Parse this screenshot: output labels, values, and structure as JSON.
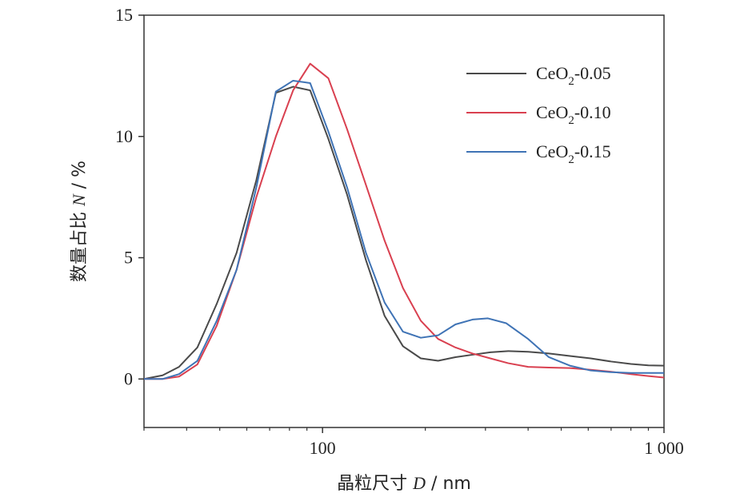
{
  "chart_data": {
    "type": "line",
    "x_scale": "log",
    "xlim": [
      30,
      1000
    ],
    "ylim": [
      -2,
      15
    ],
    "xlabel": {
      "prefix": "晶粒尺寸 ",
      "symbol": "D",
      "suffix": " / nm"
    },
    "ylabel": {
      "prefix": "数量占比 ",
      "symbol": "N",
      "suffix": " / %"
    },
    "x_ticks": [
      {
        "value": 100,
        "label": "100"
      },
      {
        "value": 1000,
        "label": "1 000"
      }
    ],
    "y_ticks": [
      {
        "value": 0,
        "label": "0"
      },
      {
        "value": 5,
        "label": "5"
      },
      {
        "value": 10,
        "label": "10"
      },
      {
        "value": 15,
        "label": "15"
      }
    ],
    "legend_position": "top-right",
    "series": [
      {
        "name": "CeO2-0.05",
        "name_parts": {
          "base": "CeO",
          "sub": "2",
          "tail": "-0.05"
        },
        "color": "#4a4a4a",
        "points": [
          [
            30,
            0
          ],
          [
            34,
            0.15
          ],
          [
            38,
            0.5
          ],
          [
            43,
            1.3
          ],
          [
            49,
            3.1
          ],
          [
            56,
            5.2
          ],
          [
            64,
            8.2
          ],
          [
            73,
            11.8
          ],
          [
            82,
            12.05
          ],
          [
            92,
            11.9
          ],
          [
            104,
            9.9
          ],
          [
            118,
            7.6
          ],
          [
            134,
            4.9
          ],
          [
            152,
            2.6
          ],
          [
            172,
            1.35
          ],
          [
            194,
            0.85
          ],
          [
            218,
            0.75
          ],
          [
            245,
            0.9
          ],
          [
            275,
            1.0
          ],
          [
            310,
            1.1
          ],
          [
            350,
            1.15
          ],
          [
            400,
            1.12
          ],
          [
            460,
            1.05
          ],
          [
            530,
            0.95
          ],
          [
            610,
            0.85
          ],
          [
            700,
            0.72
          ],
          [
            800,
            0.62
          ],
          [
            900,
            0.56
          ],
          [
            1000,
            0.55
          ]
        ]
      },
      {
        "name": "CeO2-0.10",
        "name_parts": {
          "base": "CeO",
          "sub": "2",
          "tail": "-0.10"
        },
        "color": "#d94050",
        "points": [
          [
            30,
            0
          ],
          [
            34,
            0
          ],
          [
            38,
            0.1
          ],
          [
            43,
            0.6
          ],
          [
            49,
            2.2
          ],
          [
            56,
            4.5
          ],
          [
            64,
            7.5
          ],
          [
            73,
            10.0
          ],
          [
            82,
            11.9
          ],
          [
            92,
            13.0
          ],
          [
            104,
            12.4
          ],
          [
            118,
            10.3
          ],
          [
            134,
            8.0
          ],
          [
            152,
            5.7
          ],
          [
            172,
            3.75
          ],
          [
            194,
            2.4
          ],
          [
            218,
            1.65
          ],
          [
            245,
            1.3
          ],
          [
            275,
            1.05
          ],
          [
            310,
            0.85
          ],
          [
            350,
            0.65
          ],
          [
            400,
            0.5
          ],
          [
            460,
            0.47
          ],
          [
            530,
            0.45
          ],
          [
            610,
            0.38
          ],
          [
            700,
            0.3
          ],
          [
            800,
            0.2
          ],
          [
            900,
            0.12
          ],
          [
            1000,
            0.06
          ]
        ]
      },
      {
        "name": "CeO2-0.15",
        "name_parts": {
          "base": "CeO",
          "sub": "2",
          "tail": "-0.15"
        },
        "color": "#3f73b5",
        "points": [
          [
            30,
            0
          ],
          [
            34,
            0
          ],
          [
            38,
            0.2
          ],
          [
            43,
            0.75
          ],
          [
            49,
            2.4
          ],
          [
            56,
            4.5
          ],
          [
            64,
            7.9
          ],
          [
            73,
            11.85
          ],
          [
            82,
            12.3
          ],
          [
            92,
            12.2
          ],
          [
            104,
            10.2
          ],
          [
            118,
            7.9
          ],
          [
            134,
            5.2
          ],
          [
            152,
            3.15
          ],
          [
            172,
            1.95
          ],
          [
            194,
            1.7
          ],
          [
            218,
            1.8
          ],
          [
            245,
            2.25
          ],
          [
            275,
            2.45
          ],
          [
            305,
            2.5
          ],
          [
            345,
            2.3
          ],
          [
            400,
            1.65
          ],
          [
            460,
            0.9
          ],
          [
            530,
            0.55
          ],
          [
            610,
            0.35
          ],
          [
            700,
            0.28
          ],
          [
            800,
            0.25
          ],
          [
            900,
            0.25
          ],
          [
            1000,
            0.25
          ]
        ]
      }
    ]
  }
}
